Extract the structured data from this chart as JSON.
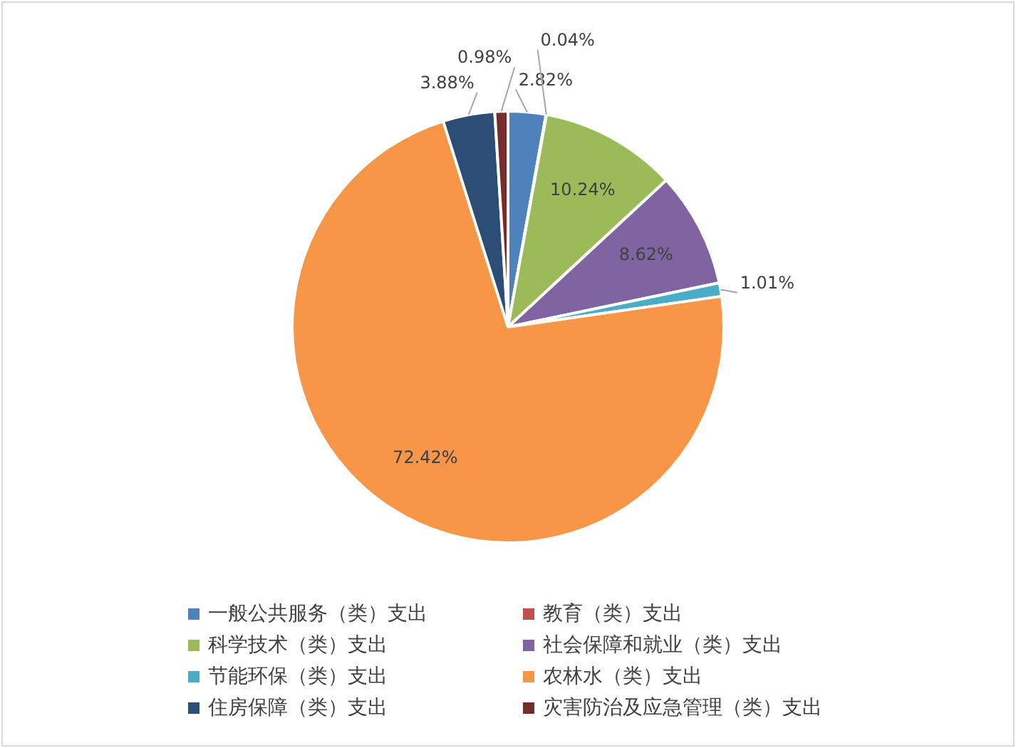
{
  "chart_data": {
    "type": "pie",
    "categories": [
      "一般公共服务（类）支出",
      "教育（类）支出",
      "科学技术（类）支出",
      "社会保障和就业（类）支出",
      "节能环保（类）支出",
      "农林水（类）支出",
      "住房保障（类）支出",
      "灾害防治及应急管理（类）支出"
    ],
    "values": [
      2.82,
      0.04,
      10.24,
      8.62,
      1.01,
      72.42,
      3.88,
      0.98
    ],
    "colors": [
      "#4f81bd",
      "#c0504d",
      "#9bbb59",
      "#8064a2",
      "#4bacc6",
      "#f79646",
      "#2c4d75",
      "#772c2a"
    ],
    "value_labels": [
      "2.82%",
      "0.04%",
      "10.24%",
      "8.62%",
      "1.01%",
      "72.42%",
      "3.88%",
      "0.98%"
    ],
    "legend": "bottom"
  }
}
